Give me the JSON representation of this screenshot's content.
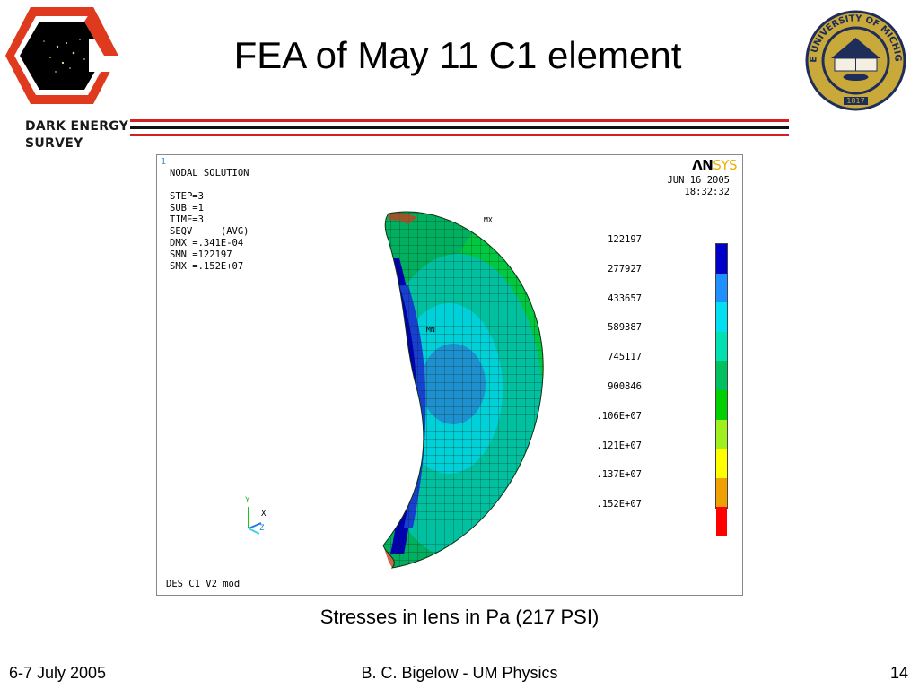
{
  "slide": {
    "title": "FEA of May 11 C1 element",
    "caption": "Stresses in lens in Pa (217 PSI)"
  },
  "logo": {
    "des_line1": "DARK ENERGY",
    "des_line2": "SURVEY",
    "seal_text": "THE UNIVERSITY OF MICHIGAN",
    "seal_year": "1817"
  },
  "colors": {
    "rule_red": "#d42020",
    "rule_black": "#111111",
    "des_red": "#e03a1e"
  },
  "figure": {
    "frame_number": "1",
    "brand_left": "ΛN",
    "brand_right": "SYS",
    "info_lines": [
      "NODAL SOLUTION",
      "",
      "STEP=3",
      "SUB =1",
      "TIME=3",
      "SEQV     (AVG)",
      "DMX =.341E-04",
      "SMN =122197",
      "SMX =.152E+07"
    ],
    "date": "JUN 16 2005",
    "time": "18:32:32",
    "min_marker": "MN",
    "max_marker": "MX",
    "axis_x": "X",
    "axis_y": "Y",
    "axis_z": "Z",
    "legend_values": [
      "122197",
      "277927",
      "433657",
      "589387",
      "745117",
      "900846",
      ".106E+07",
      ".121E+07",
      ".137E+07",
      ".152E+07"
    ],
    "legend_colors": [
      "#0000c8",
      "#1e90ff",
      "#00e0f0",
      "#00e0b0",
      "#00c060",
      "#00d000",
      "#a0f020",
      "#ffff00",
      "#f0a000",
      "#ff0000"
    ],
    "model_label": "DES C1 V2 mod"
  },
  "footer": {
    "date": "6-7 July 2005",
    "author": "B. C. Bigelow - UM Physics",
    "page": "14"
  }
}
